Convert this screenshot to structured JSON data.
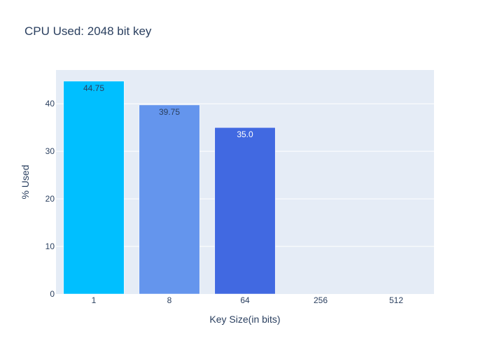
{
  "chart_data": {
    "type": "bar",
    "title": "CPU Used: 2048 bit key",
    "xlabel": "Key Size(in bits)",
    "ylabel": "% Used",
    "categories": [
      "1",
      "8",
      "64",
      "256",
      "512"
    ],
    "values": [
      44.75,
      39.75,
      35.0,
      0,
      0
    ],
    "data_labels": [
      "44.75",
      "39.75",
      "35.0",
      "",
      ""
    ],
    "ylim": [
      0,
      47.1
    ],
    "yticks": [
      0,
      10,
      20,
      30,
      40
    ],
    "grid": true,
    "legend": "none",
    "bar_colors": [
      "#00bfff",
      "#6495ed",
      "#4169e1",
      "#636efa",
      "#636efa"
    ],
    "label_colors": [
      "#2a3f5f",
      "#2a3f5f",
      "#ffffff",
      "#2a3f5f",
      "#2a3f5f"
    ],
    "plot_background": "#e5ecf6",
    "grid_color": "#ffffff",
    "text_color": "#2a3f5f"
  }
}
